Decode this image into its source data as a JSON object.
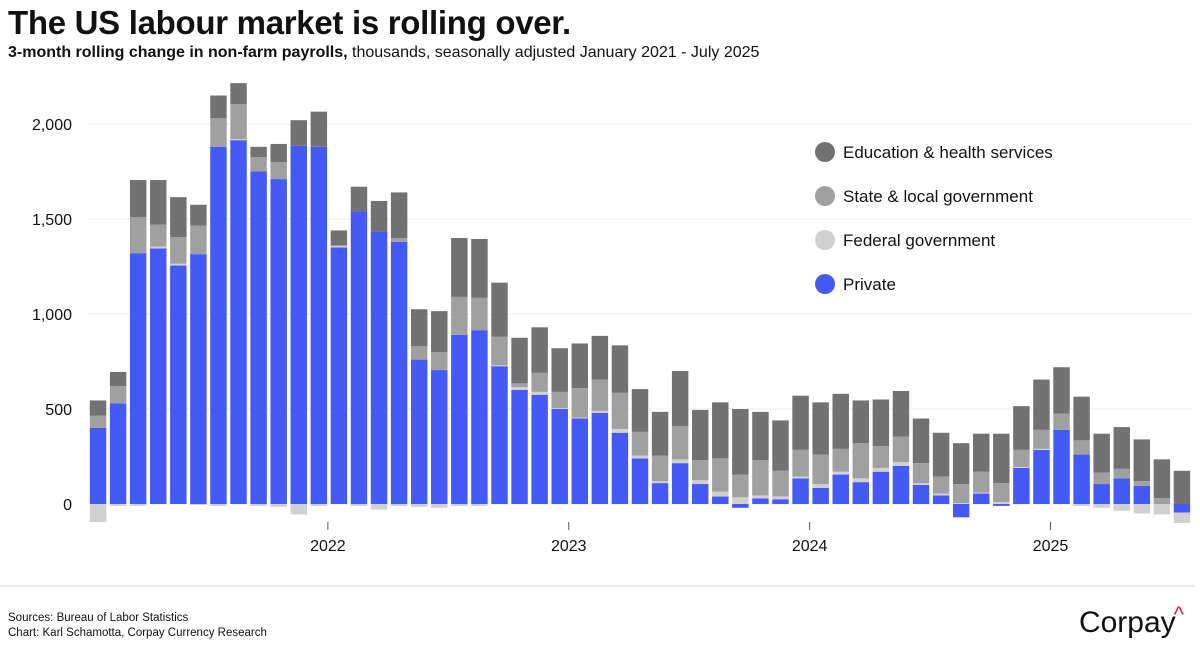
{
  "header": {
    "title": "The US labour market is rolling over.",
    "subtitle_bold": "3-month rolling change in non-farm payrolls,",
    "subtitle_rest": "thousands, seasonally adjusted January 2021 - July 2025"
  },
  "footer": {
    "sources": "Sources: Bureau of Labor Statistics",
    "credit": "Chart: Karl Schamotta, Corpay Currency Research",
    "brand": "Corpay",
    "brand_mark": "^"
  },
  "chart_data": {
    "type": "bar",
    "stacked": true,
    "ylim": [
      -100,
      2200
    ],
    "yticks": [
      0,
      500,
      1000,
      1500,
      2000
    ],
    "ytick_labels": [
      "0",
      "500",
      "1,000",
      "1,500",
      "2,000"
    ],
    "xtick_labels": [
      {
        "label": "2022",
        "index": 11
      },
      {
        "label": "2023",
        "index": 23
      },
      {
        "label": "2024",
        "index": 35
      },
      {
        "label": "2025",
        "index": 47
      }
    ],
    "grid": "horizontal",
    "legend_position": "right",
    "colors": {
      "private": "#4559f5",
      "federal": "#d0d0d0",
      "state_local": "#a0a0a0",
      "education_health": "#727272"
    },
    "categories": [
      "Jan 2021",
      "Feb 2021",
      "Mar 2021",
      "Apr 2021",
      "May 2021",
      "Jun 2021",
      "Jul 2021",
      "Aug 2021",
      "Sep 2021",
      "Oct 2021",
      "Nov 2021",
      "Dec 2021",
      "Jan 2022",
      "Feb 2022",
      "Mar 2022",
      "Apr 2022",
      "May 2022",
      "Jun 2022",
      "Jul 2022",
      "Aug 2022",
      "Sep 2022",
      "Oct 2022",
      "Nov 2022",
      "Dec 2022",
      "Jan 2023",
      "Feb 2023",
      "Mar 2023",
      "Apr 2023",
      "May 2023",
      "Jun 2023",
      "Jul 2023",
      "Aug 2023",
      "Sep 2023",
      "Oct 2023",
      "Nov 2023",
      "Dec 2023",
      "Jan 2024",
      "Feb 2024",
      "Mar 2024",
      "Apr 2024",
      "May 2024",
      "Jun 2024",
      "Jul 2024",
      "Aug 2024",
      "Sep 2024",
      "Oct 2024",
      "Nov 2024",
      "Dec 2024",
      "Jan 2025",
      "Feb 2025",
      "Mar 2025",
      "Apr 2025",
      "May 2025",
      "Jun 2025",
      "Jul 2025"
    ],
    "legend": [
      {
        "key": "education_health",
        "label": "Education & health services"
      },
      {
        "key": "state_local",
        "label": "State & local government"
      },
      {
        "key": "federal",
        "label": "Federal government"
      },
      {
        "key": "private",
        "label": "Private"
      }
    ],
    "series": [
      {
        "key": "private",
        "name": "Private",
        "values": [
          400,
          530,
          1320,
          1345,
          1255,
          1315,
          1880,
          1915,
          1750,
          1710,
          1885,
          1880,
          1350,
          1540,
          1435,
          1380,
          760,
          705,
          890,
          915,
          725,
          600,
          575,
          500,
          450,
          480,
          375,
          240,
          110,
          215,
          105,
          40,
          -20,
          30,
          25,
          135,
          85,
          155,
          115,
          170,
          200,
          100,
          45,
          -70,
          55,
          -10,
          190,
          285,
          390,
          260,
          105,
          135,
          95,
          0,
          -45
        ]
      },
      {
        "key": "federal",
        "name": "Federal government",
        "values": [
          -95,
          -10,
          -10,
          10,
          10,
          -5,
          -10,
          5,
          -10,
          -15,
          -55,
          -10,
          10,
          -10,
          -30,
          -10,
          -15,
          -20,
          -10,
          -10,
          5,
          15,
          15,
          5,
          5,
          10,
          20,
          15,
          10,
          20,
          20,
          25,
          35,
          15,
          15,
          10,
          20,
          15,
          20,
          20,
          20,
          10,
          10,
          5,
          5,
          10,
          5,
          5,
          0,
          -10,
          -20,
          -35,
          -50,
          -55,
          -55
        ]
      },
      {
        "key": "state_local",
        "name": "State & local government",
        "values": [
          65,
          90,
          190,
          115,
          140,
          150,
          150,
          185,
          75,
          90,
          0,
          0,
          0,
          0,
          0,
          20,
          70,
          95,
          200,
          170,
          150,
          20,
          100,
          85,
          155,
          165,
          190,
          125,
          135,
          175,
          105,
          175,
          120,
          185,
          135,
          140,
          155,
          120,
          185,
          115,
          135,
          105,
          90,
          100,
          110,
          100,
          90,
          100,
          85,
          75,
          60,
          50,
          25,
          30,
          0
        ]
      },
      {
        "key": "education_health",
        "name": "Education & health services",
        "values": [
          80,
          75,
          195,
          235,
          210,
          110,
          120,
          110,
          55,
          95,
          135,
          185,
          80,
          130,
          160,
          240,
          195,
          215,
          310,
          310,
          285,
          240,
          240,
          230,
          235,
          230,
          250,
          225,
          230,
          290,
          265,
          295,
          345,
          255,
          265,
          285,
          275,
          290,
          225,
          245,
          240,
          235,
          230,
          215,
          200,
          260,
          230,
          265,
          245,
          230,
          205,
          220,
          220,
          205,
          175
        ]
      }
    ]
  }
}
